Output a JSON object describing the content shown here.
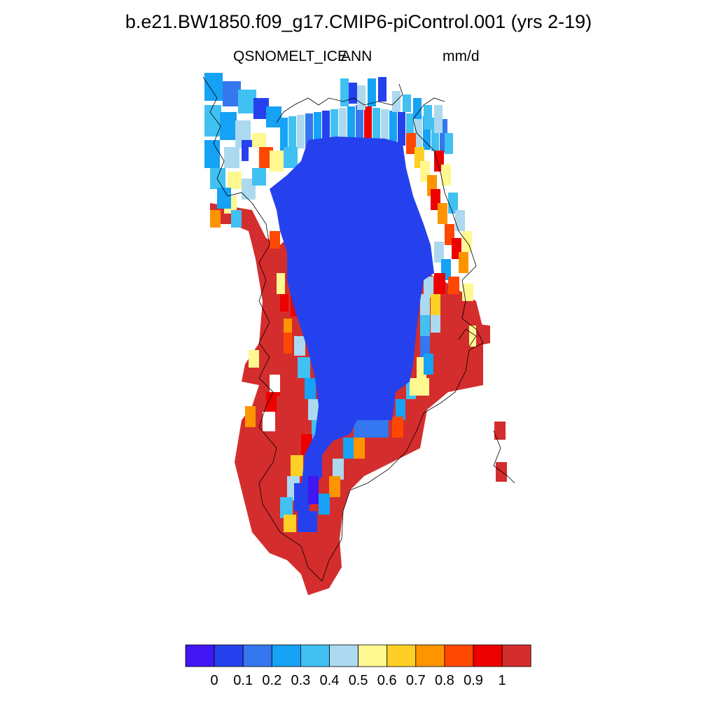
{
  "title": "b.e21.BW1850.f09_g17.CMIP6-piControl.001 (yrs 2-19)",
  "variable": "QSNOMELT_ICE",
  "season": "ANN",
  "units": "mm/d",
  "colorbar": {
    "colors": [
      "#4016f2",
      "#2541ee",
      "#3477ef",
      "#16a2f5",
      "#41c0f2",
      "#acd9ef",
      "#fff891",
      "#fecf25",
      "#fe9400",
      "#fe4700",
      "#ec0000",
      "#d42d2d"
    ],
    "labels": [
      "0",
      "0.1",
      "0.2",
      "0.3",
      "0.4",
      "0.5",
      "0.6",
      "0.7",
      "0.8",
      "0.9",
      "1"
    ]
  }
}
